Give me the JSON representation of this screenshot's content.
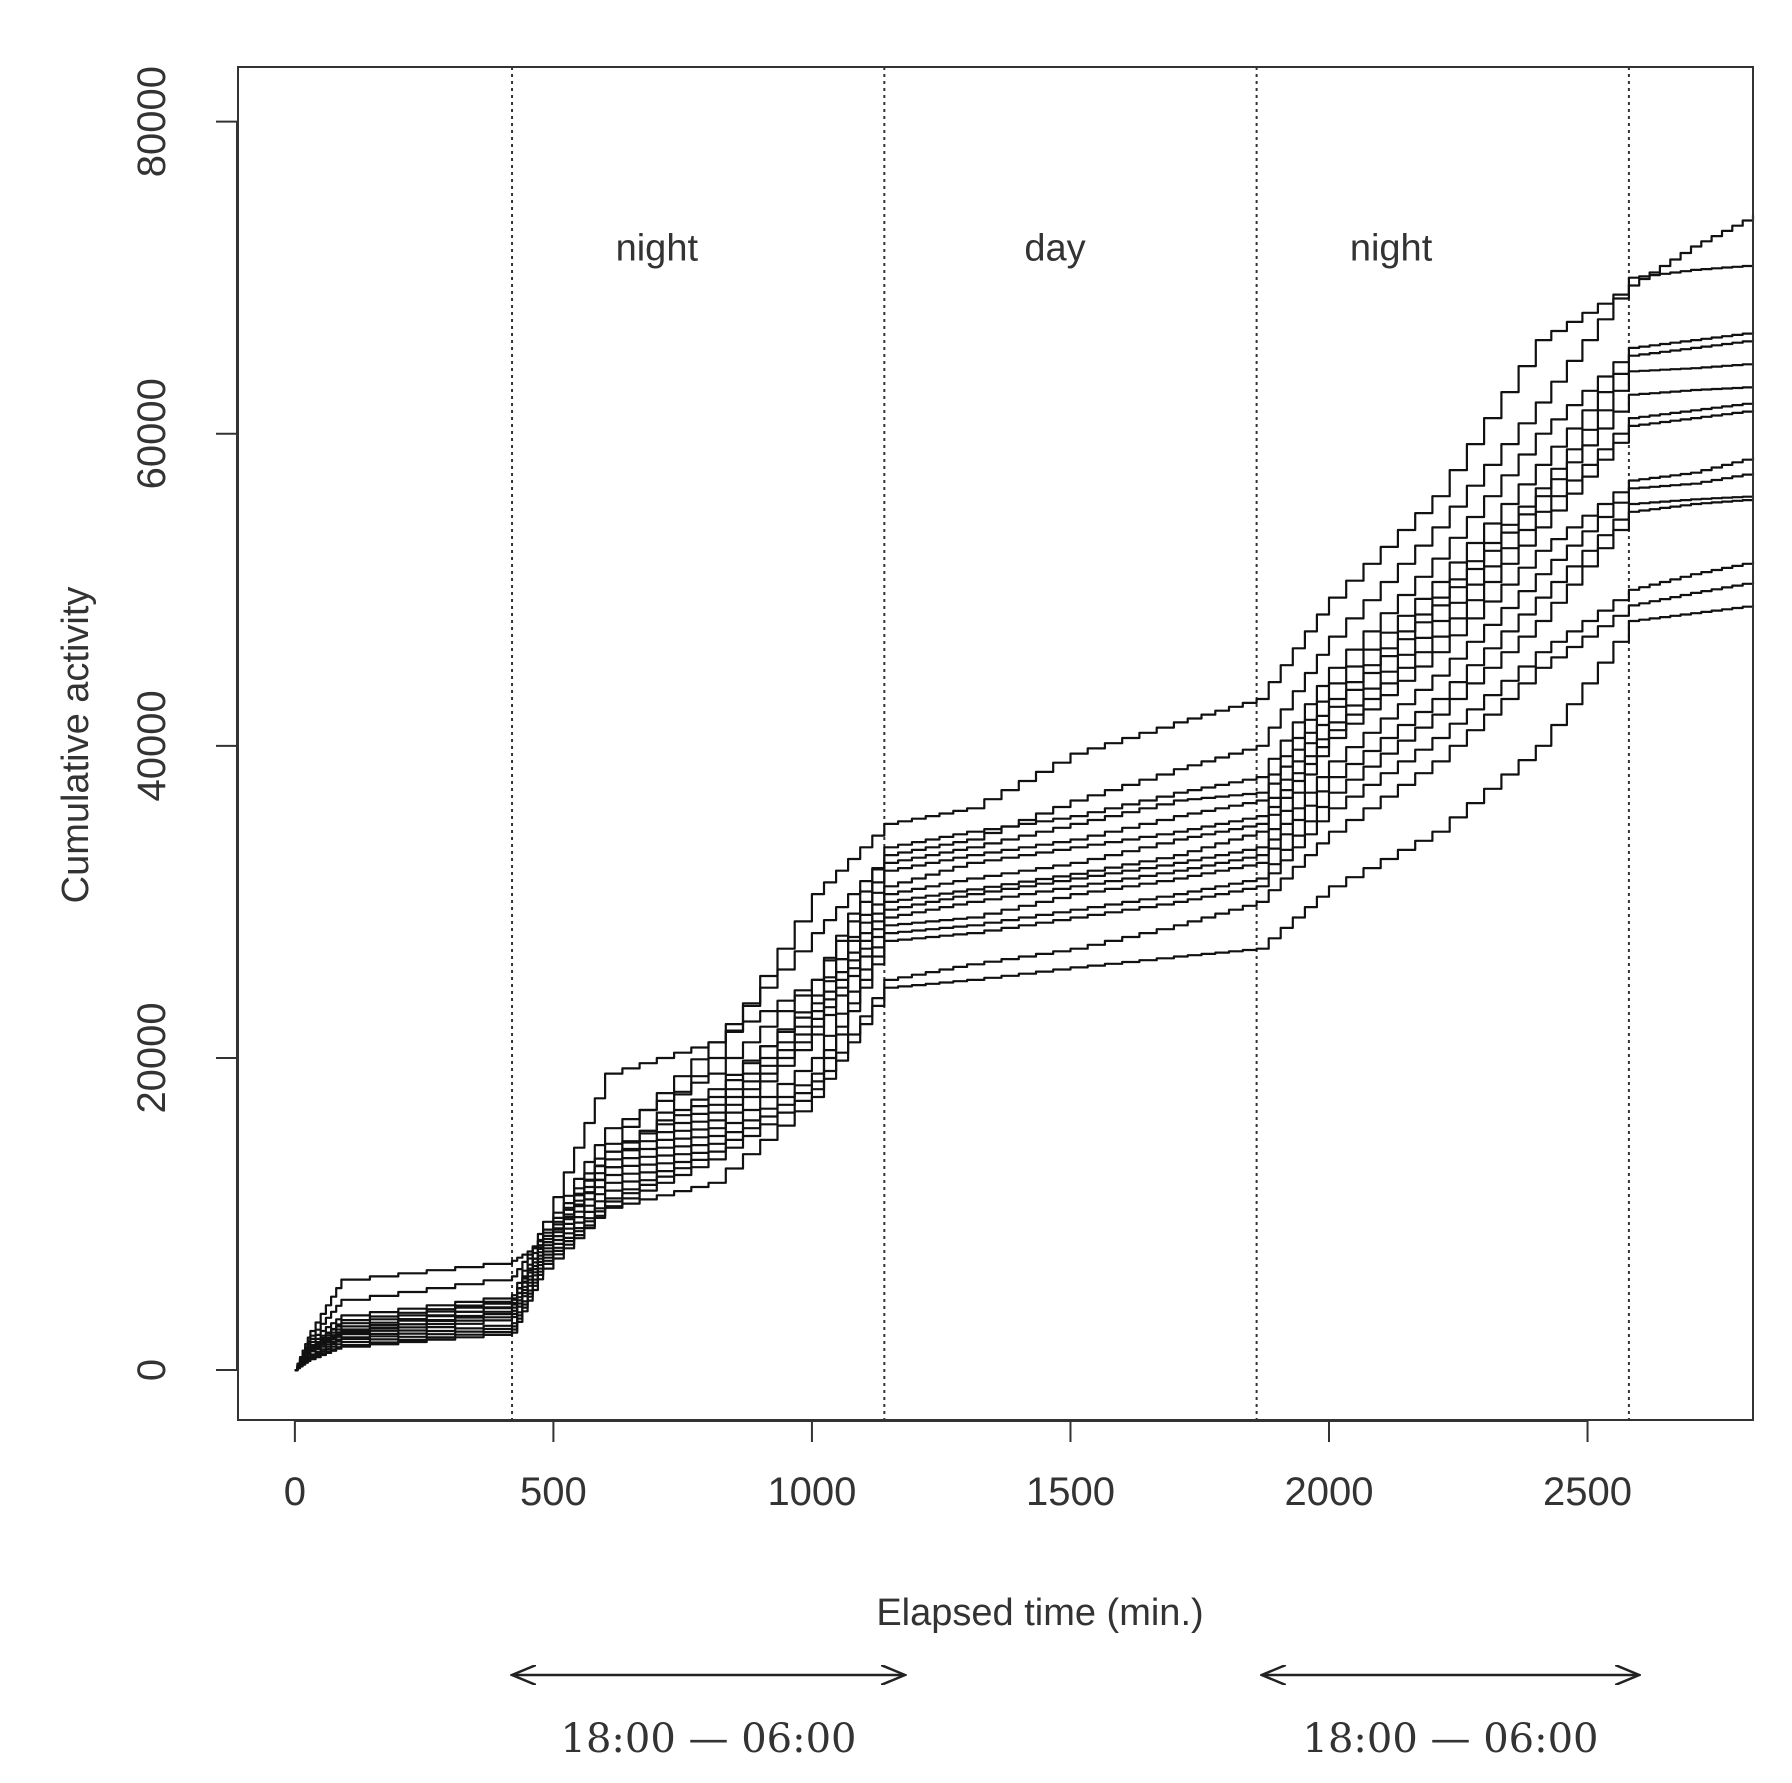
{
  "chart_data": {
    "type": "line",
    "xlabel": "Elapsed time  (min.)",
    "ylabel": "Cumulative activity",
    "xlim": [
      -110,
      2820
    ],
    "ylim": [
      -3200,
      83500
    ],
    "x_ticks": [
      0,
      500,
      1000,
      1500,
      2000,
      2500
    ],
    "y_ticks": [
      0,
      20000,
      40000,
      60000,
      80000
    ],
    "x_tick_labels": [
      "0",
      "500",
      "1000",
      "1500",
      "2000",
      "2500"
    ],
    "y_tick_labels": [
      "0",
      "20000",
      "40000",
      "60000",
      "80000"
    ],
    "grid": false,
    "period_boundaries": [
      420,
      1140,
      1860,
      2580
    ],
    "period_labels": [
      {
        "text": "night",
        "x": 700
      },
      {
        "text": "day",
        "x": 1470
      },
      {
        "text": "night",
        "x": 2120
      }
    ],
    "period_label_y": 72000,
    "time_ranges": [
      {
        "label": "18:00 — 06:00",
        "x_start": 420,
        "x_end": 1180
      },
      {
        "label": "18:00 — 06:00",
        "x_start": 1870,
        "x_end": 2600
      }
    ],
    "x": [
      0,
      30,
      90,
      420,
      480,
      600,
      800,
      1000,
      1140,
      1300,
      1500,
      1700,
      1860,
      2000,
      2200,
      2400,
      2580,
      2700,
      2820
    ],
    "series": [
      {
        "values": [
          0,
          2500,
          5800,
          7000,
          8200,
          13000,
          20000,
          30500,
          35000,
          36000,
          39500,
          41500,
          43000,
          49500,
          56000,
          66000,
          69500,
          72000,
          74000
        ]
      },
      {
        "values": [
          0,
          2200,
          4500,
          6000,
          8800,
          14500,
          21000,
          28000,
          33000,
          34000,
          36500,
          38500,
          40000,
          47000,
          54000,
          62000,
          70000,
          70500,
          70800
        ]
      },
      {
        "values": [
          0,
          2000,
          3500,
          4800,
          9500,
          19000,
          21000,
          25000,
          33500,
          34500,
          35500,
          37000,
          38000,
          45000,
          52000,
          60000,
          65500,
          66000,
          66500
        ]
      },
      {
        "values": [
          0,
          1800,
          3000,
          4500,
          9000,
          15500,
          19000,
          25000,
          32500,
          33500,
          35000,
          36500,
          37000,
          44000,
          50500,
          58000,
          65000,
          65500,
          66000
        ]
      },
      {
        "values": [
          0,
          1600,
          2800,
          4200,
          8600,
          14000,
          18000,
          23500,
          32000,
          33000,
          34000,
          35500,
          36500,
          43000,
          49500,
          56500,
          64000,
          64200,
          64500
        ]
      },
      {
        "values": [
          0,
          1500,
          3200,
          4600,
          8400,
          14000,
          17500,
          24000,
          31000,
          32500,
          33500,
          34500,
          35500,
          42500,
          49000,
          56000,
          62500,
          62800,
          63000
        ]
      },
      {
        "values": [
          0,
          1500,
          2600,
          4300,
          8200,
          13500,
          17000,
          23000,
          30500,
          31500,
          32500,
          34000,
          35000,
          41500,
          48000,
          55000,
          61000,
          61500,
          62000
        ]
      },
      {
        "values": [
          0,
          1400,
          2400,
          4000,
          8000,
          13000,
          16500,
          22500,
          30000,
          30800,
          31800,
          33000,
          34500,
          41000,
          47000,
          54000,
          60500,
          61000,
          61500
        ]
      },
      {
        "values": [
          0,
          1400,
          2500,
          3800,
          7800,
          12500,
          16000,
          22000,
          29500,
          30500,
          31500,
          32500,
          33500,
          40500,
          46000,
          52500,
          57000,
          57500,
          58500
        ]
      },
      {
        "values": [
          0,
          1300,
          2300,
          3600,
          7600,
          12000,
          15500,
          21500,
          29000,
          30000,
          31000,
          32000,
          33000,
          39000,
          44500,
          51000,
          56500,
          56800,
          57500
        ]
      },
      {
        "values": [
          0,
          1200,
          2100,
          3400,
          7400,
          11500,
          15000,
          20000,
          28500,
          29000,
          30500,
          31500,
          32500,
          38000,
          43000,
          49500,
          55500,
          55800,
          56000
        ]
      },
      {
        "values": [
          0,
          1000,
          2000,
          3000,
          7200,
          11000,
          14500,
          19000,
          28000,
          28500,
          29500,
          30500,
          31500,
          37000,
          42000,
          48000,
          55000,
          55500,
          55800
        ]
      },
      {
        "values": [
          0,
          900,
          1800,
          2800,
          7000,
          10800,
          14000,
          18500,
          27500,
          28000,
          29000,
          30000,
          31000,
          36000,
          40500,
          46000,
          50000,
          51000,
          51800
        ]
      },
      {
        "values": [
          0,
          800,
          1600,
          2600,
          6800,
          10500,
          13500,
          18000,
          25000,
          26000,
          27000,
          28500,
          30000,
          34500,
          39000,
          45000,
          49000,
          49800,
          50500
        ]
      },
      {
        "values": [
          0,
          700,
          1500,
          2400,
          6500,
          10400,
          12000,
          17500,
          24500,
          25000,
          25800,
          26500,
          27000,
          31000,
          34500,
          40000,
          48000,
          48500,
          49000
        ]
      }
    ]
  }
}
